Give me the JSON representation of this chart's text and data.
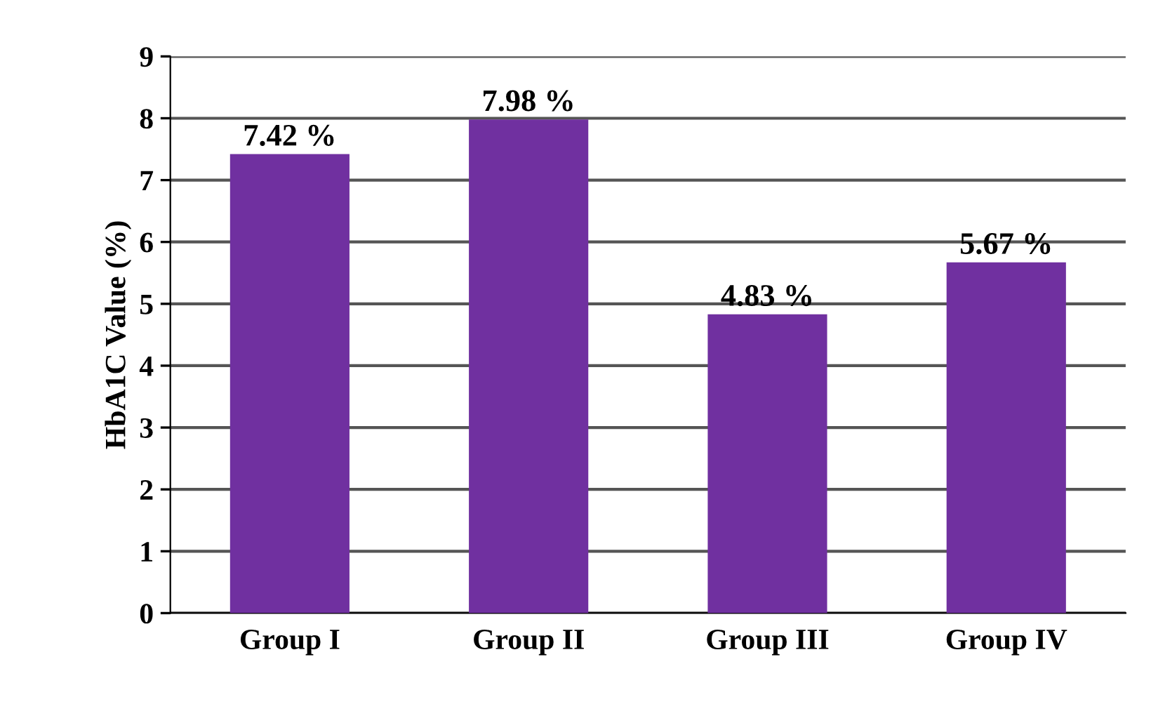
{
  "chart_data": {
    "type": "bar",
    "ylabel": "HbA1C Value (%)",
    "categories": [
      "Group I",
      "Group II",
      "Group III",
      "Group IV"
    ],
    "values": [
      7.42,
      7.98,
      4.83,
      5.67
    ],
    "color": "#7030a0",
    "value_labels": [
      "7.42 %",
      "7.98 %",
      "4.83 %",
      "5.67 %"
    ],
    "ylim": [
      0,
      9
    ],
    "yticks": [
      0,
      1,
      2,
      3,
      4,
      5,
      6,
      7,
      8,
      9
    ],
    "grid": "y"
  }
}
